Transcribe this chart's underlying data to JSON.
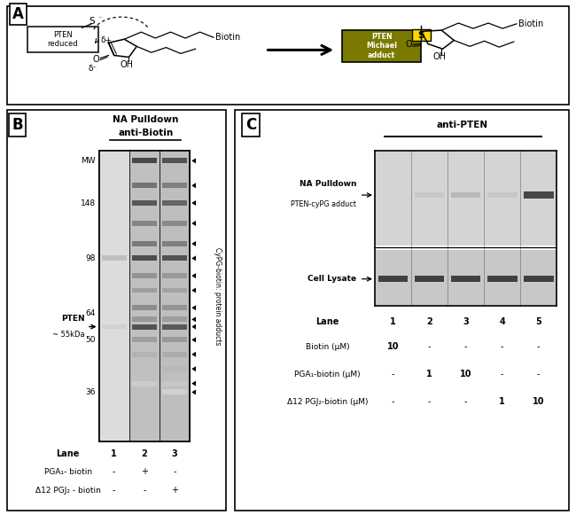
{
  "fig_width": 6.5,
  "fig_height": 5.81,
  "bg_color": "#ffffff",
  "panel_A": {
    "label": "A"
  },
  "panel_B": {
    "label": "B",
    "title_line1": "NA Pulldown",
    "title_line2": "anti-Biotin",
    "mw_labels": [
      "MW",
      "148",
      "98",
      "64",
      "50",
      "36"
    ],
    "pten_label_1": "PTEN",
    "pten_label_2": "~ 55kDa",
    "lane_header": "Lane",
    "lane_numbers": [
      "1",
      "2",
      "3"
    ],
    "row1_label": "PGA₁- biotin",
    "row1_values": [
      "-",
      "+",
      "-"
    ],
    "row2_label": "Δ12 PGJ₂ - biotin",
    "row2_values": [
      "-",
      "-",
      "+"
    ],
    "right_label": "CyPG-biotin: protein adducts",
    "gel_bg": "#e8e8e8",
    "lane1_bg": "#d0d0d0",
    "lane2_bg": "#b0b0b0",
    "lane3_bg": "#a8a8a8"
  },
  "panel_C": {
    "label": "C",
    "antibody_label": "anti-PTEN",
    "pulldown_label1": "NA Pulldown",
    "pulldown_label2": "PTEN-cyPG adduct",
    "lysate_label": "Cell Lysate",
    "lane_header": "Lane",
    "lane_numbers": [
      "1",
      "2",
      "3",
      "4",
      "5"
    ],
    "row1_label": "Biotin (μM)",
    "row1_values": [
      "10",
      "-",
      "-",
      "-",
      "-"
    ],
    "row2_label": "PGA₁-biotin (μM)",
    "row2_values": [
      "-",
      "1",
      "10",
      "-",
      "-"
    ],
    "row3_label": "Δ12 PGJ₂-biotin (μM)",
    "row3_values": [
      "-",
      "-",
      "-",
      "1",
      "10"
    ],
    "gel_bg": "#cccccc",
    "upper_bg": "#c8c8c8",
    "lower_bg": "#b8b8b8"
  }
}
